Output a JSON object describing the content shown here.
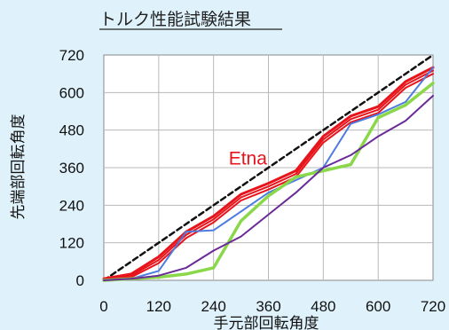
{
  "chart_data": {
    "type": "line",
    "title": "トルク性能試験結果",
    "xlabel": "手元部回転角度",
    "ylabel": "先端部回転角度",
    "xlim": [
      0,
      720
    ],
    "ylim": [
      0,
      720
    ],
    "xticks": [
      "0",
      "120",
      "240",
      "360",
      "480",
      "600",
      "720"
    ],
    "yticks": [
      "0",
      "120",
      "240",
      "360",
      "480",
      "600",
      "720"
    ],
    "grid": true,
    "legend": "none",
    "annotation": {
      "text": "Etna",
      "x": 315,
      "y": 370,
      "color": "#e8141b"
    },
    "series": [
      {
        "color": "#111111",
        "dashed": true,
        "width": 2.5,
        "x": [
          0,
          720
        ],
        "y": [
          0,
          720
        ]
      },
      {
        "color": "#e8141b",
        "width": 3,
        "x": [
          0,
          60,
          120,
          180,
          240,
          300,
          360,
          420,
          480,
          540,
          600,
          660,
          720
        ],
        "y": [
          5,
          20,
          75,
          155,
          205,
          275,
          310,
          350,
          460,
          525,
          555,
          635,
          680
        ]
      },
      {
        "color": "#e8141b",
        "width": 2,
        "x": [
          0,
          60,
          120,
          180,
          240,
          300,
          360,
          420,
          480,
          540,
          600,
          660,
          720
        ],
        "y": [
          3,
          15,
          65,
          145,
          195,
          265,
          300,
          340,
          450,
          515,
          545,
          625,
          670
        ]
      },
      {
        "color": "#e8141b",
        "width": 2,
        "x": [
          0,
          60,
          120,
          180,
          240,
          300,
          360,
          420,
          480,
          540,
          600,
          660,
          720
        ],
        "y": [
          0,
          10,
          55,
          135,
          185,
          255,
          290,
          330,
          440,
          505,
          535,
          615,
          660
        ]
      },
      {
        "color": "#4d7be0",
        "width": 2,
        "x": [
          0,
          60,
          120,
          180,
          240,
          300,
          360,
          420,
          480,
          540,
          600,
          660,
          720
        ],
        "y": [
          0,
          5,
          30,
          155,
          160,
          220,
          280,
          320,
          360,
          500,
          530,
          570,
          680
        ]
      },
      {
        "color": "#8ad84a",
        "width": 3.5,
        "x": [
          0,
          60,
          120,
          180,
          240,
          300,
          360,
          420,
          480,
          540,
          600,
          660,
          720
        ],
        "y": [
          0,
          5,
          10,
          20,
          40,
          190,
          270,
          330,
          350,
          370,
          520,
          560,
          630
        ]
      },
      {
        "color": "#6a2b99",
        "width": 2,
        "x": [
          0,
          60,
          120,
          180,
          240,
          300,
          360,
          420,
          480,
          540,
          600,
          660,
          720
        ],
        "y": [
          0,
          5,
          15,
          40,
          95,
          140,
          210,
          280,
          360,
          400,
          460,
          510,
          590
        ]
      }
    ]
  }
}
